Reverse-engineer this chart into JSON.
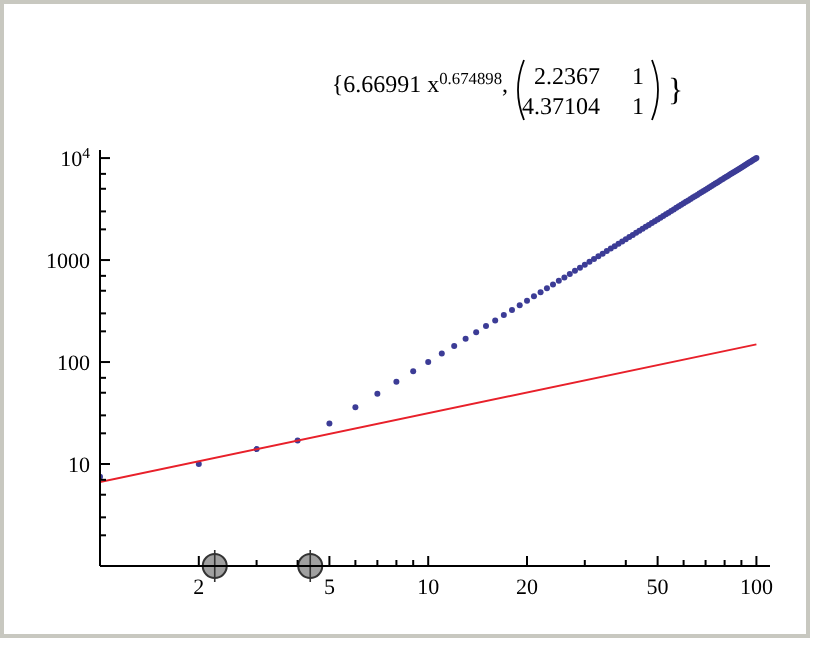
{
  "chart_data": {
    "type": "scatter",
    "title": "{6.66991 x$^{0.674898}$,",
    "annotations": [
      "2.2367",
      "1",
      "4.37104",
      "1",
      "}"
    ],
    "log": "xy",
    "xlim": [
      1,
      110
    ],
    "ylim": [
      1,
      12000
    ],
    "xticks": [
      2,
      5,
      10,
      20,
      50,
      100,
      {
        "value": 3,
        "label": null
      },
      {
        "value": 4,
        "label": null
      },
      {
        "value": 6,
        "label": null
      },
      {
        "value": 7,
        "label": null
      },
      {
        "value": 8,
        "label": null
      },
      {
        "value": 9,
        "label": null
      },
      {
        "value": 30,
        "label": null
      },
      {
        "value": 40,
        "label": null
      },
      {
        "value": 60,
        "label": null
      },
      {
        "value": 70,
        "label": null
      },
      {
        "value": 80,
        "label": null
      },
      {
        "value": 90,
        "label": null
      }
    ],
    "yticks": [
      10,
      100,
      1000,
      {
        "value": 10000,
        "label": "10$^{4}$"
      },
      {
        "value": 2,
        "label": null
      },
      {
        "value": 3,
        "label": null
      },
      {
        "value": 5,
        "label": null
      },
      {
        "value": 7,
        "label": null
      },
      {
        "value": 20,
        "label": null
      },
      {
        "value": 30,
        "label": null
      },
      {
        "value": 50,
        "label": null
      },
      {
        "value": 70,
        "label": null
      },
      {
        "value": 200,
        "label": null
      },
      {
        "value": 300,
        "label": null
      },
      {
        "value": 500,
        "label": null
      },
      {
        "value": 700,
        "label": null
      },
      {
        "value": 2000,
        "label": null
      },
      {
        "value": 3000,
        "label": null
      },
      {
        "value": 5000,
        "label": null
      },
      {
        "value": 7000,
        "label": null
      }
    ],
    "grid": false,
    "series": [
      {
        "marker": "circle",
        "color": "#3c3c96",
        "x": [
          1,
          2,
          3,
          4,
          5,
          6,
          7,
          8,
          9,
          10,
          11,
          12,
          13,
          14,
          15,
          16,
          17,
          18,
          19,
          20,
          21,
          22,
          23,
          24,
          25,
          26,
          27,
          28,
          29,
          30,
          31,
          32,
          33,
          34,
          35,
          36,
          37,
          38,
          39,
          40,
          41,
          42,
          43,
          44,
          45,
          46,
          47,
          48,
          49,
          50,
          51,
          52,
          53,
          54,
          55,
          56,
          57,
          58,
          59,
          60,
          61,
          62,
          63,
          64,
          65,
          66,
          67,
          68,
          69,
          70,
          71,
          72,
          73,
          74,
          75,
          76,
          77,
          78,
          79,
          80,
          81,
          82,
          83,
          84,
          85,
          86,
          87,
          88,
          89,
          90,
          91,
          92,
          93,
          94,
          95,
          96,
          97,
          98,
          99,
          100
        ],
        "values": [
          7.5,
          10,
          14,
          17,
          25,
          36,
          49,
          64,
          81,
          100,
          121,
          144,
          169,
          196,
          225,
          256,
          289,
          324,
          361,
          400,
          441,
          484,
          529,
          576,
          625,
          676,
          729,
          784,
          841,
          900,
          961,
          1024,
          1089,
          1156,
          1225,
          1296,
          1369,
          1444,
          1521,
          1600,
          1681,
          1764,
          1849,
          1936,
          2025,
          2116,
          2209,
          2304,
          2401,
          2500,
          2601,
          2704,
          2809,
          2916,
          3025,
          3136,
          3249,
          3364,
          3481,
          3600,
          3721,
          3844,
          3969,
          4096,
          4225,
          4356,
          4489,
          4624,
          4761,
          4900,
          5041,
          5184,
          5329,
          5476,
          5625,
          5776,
          5929,
          6084,
          6241,
          6400,
          6561,
          6724,
          6889,
          7056,
          7225,
          7396,
          7569,
          7744,
          7921,
          8100,
          8281,
          8464,
          8649,
          8836,
          9025,
          9216,
          9409,
          9604,
          9801,
          10000
        ]
      },
      {
        "type": "line",
        "line_style": "solid",
        "color": "#e8202a",
        "x": [
          1,
          100
        ],
        "values": [
          6.67,
          149
        ]
      },
      {
        "marker": "circle",
        "color": "#a0a0a0",
        "x": [
          2.2367,
          4.37104
        ],
        "values": [
          1,
          1
        ]
      }
    ]
  }
}
